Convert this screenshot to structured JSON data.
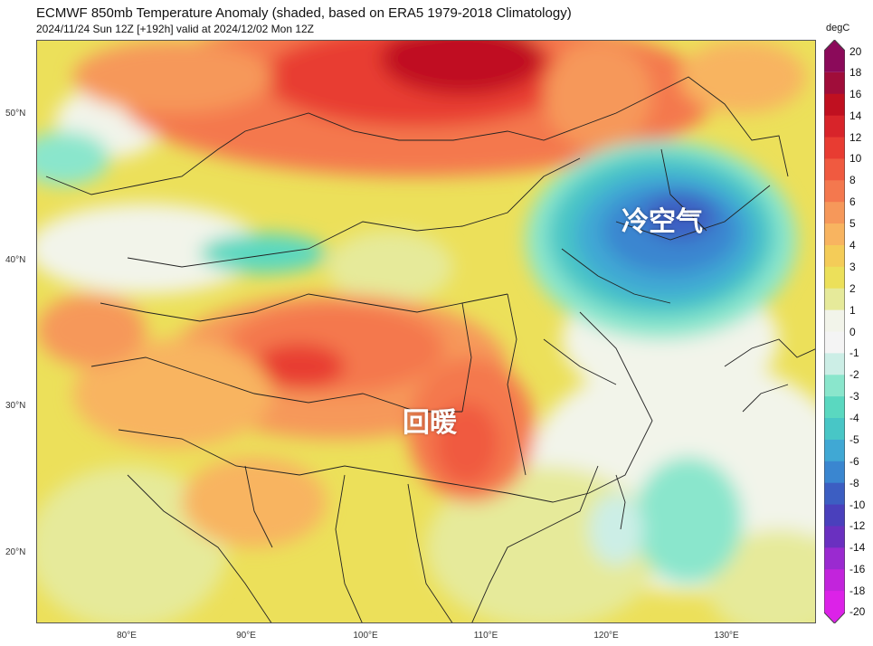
{
  "title": "ECMWF 850mb Temperature Anomaly (shaded, based on ERA5 1979-2018 Climatology)",
  "subtitle": "2024/11/24 Sun 12Z [+192h] valid at 2024/12/02 Mon 12Z",
  "annotations": {
    "cold": "冷空气",
    "warm": "回暖"
  },
  "lat_labels": [
    "50°N",
    "40°N",
    "30°N",
    "20°N"
  ],
  "lon_labels": [
    "80°E",
    "90°E",
    "100°E",
    "110°E",
    "120°E",
    "130°E"
  ],
  "colorbar": {
    "unit": "degC",
    "ticks": [
      "20",
      "18",
      "16",
      "14",
      "12",
      "10",
      "8",
      "6",
      "5",
      "4",
      "3",
      "2",
      "1",
      "0",
      "-1",
      "-2",
      "-3",
      "-4",
      "-5",
      "-6",
      "-8",
      "-10",
      "-12",
      "-14",
      "-16",
      "-18",
      "-20"
    ],
    "colors": [
      "#8b0a5a",
      "#a00d3a",
      "#c01020",
      "#d8242a",
      "#e83c32",
      "#f05a40",
      "#f4784e",
      "#f6985a",
      "#f8b460",
      "#f4cc58",
      "#ece05a",
      "#e6ea9a",
      "#f2f4ea",
      "#f4f4f4",
      "#cceee6",
      "#8ae6cc",
      "#5ad8c0",
      "#48c6c6",
      "#40a8d4",
      "#3a86d0",
      "#3c5ec2",
      "#4a40bc",
      "#6a30c0",
      "#9a2ad0",
      "#c224dc",
      "#dc22e8"
    ]
  }
}
